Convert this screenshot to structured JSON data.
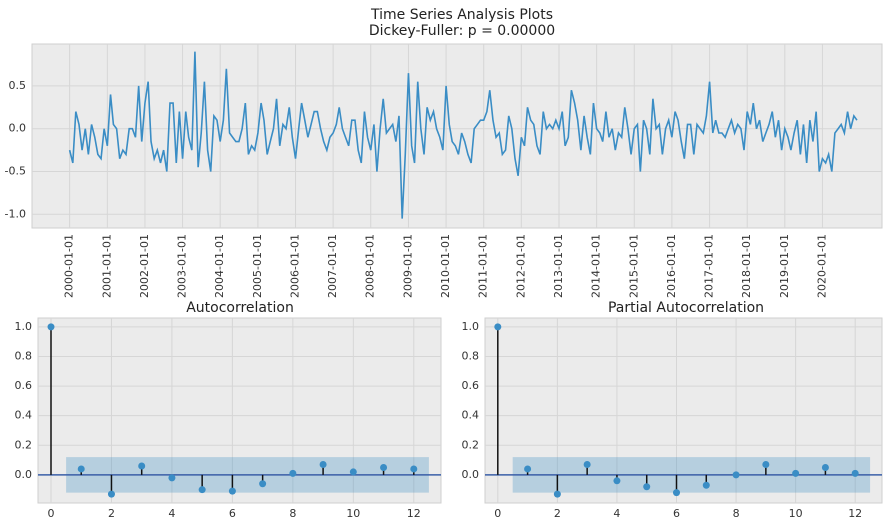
{
  "chart_data": [
    {
      "type": "line",
      "title": "Time Series Analysis Plots",
      "subtitle": "Dickey-Fuller: p = 0.00000",
      "color": "#3a8dc5",
      "grid": true,
      "x": [
        "2000-01-01",
        "2000-02-01",
        "2000-03-01",
        "2000-04-01",
        "2000-05-01",
        "2000-06-01",
        "2000-07-01",
        "2000-08-01",
        "2000-09-01",
        "2000-10-01",
        "2000-11-01",
        "2000-12-01",
        "2001-01-01",
        "2001-02-01",
        "2001-03-01",
        "2001-04-01",
        "2001-05-01",
        "2001-06-01",
        "2001-07-01",
        "2001-08-01",
        "2001-09-01",
        "2001-10-01",
        "2001-11-01",
        "2001-12-01",
        "2002-01-01",
        "2002-02-01",
        "2002-03-01",
        "2002-04-01",
        "2002-05-01",
        "2002-06-01",
        "2002-07-01",
        "2002-08-01",
        "2002-09-01",
        "2002-10-01",
        "2002-11-01",
        "2002-12-01",
        "2003-01-01",
        "2003-02-01",
        "2003-03-01",
        "2003-04-01",
        "2003-05-01",
        "2003-06-01",
        "2003-07-01",
        "2003-08-01",
        "2003-09-01",
        "2003-10-01",
        "2003-11-01",
        "2003-12-01",
        "2004-01-01",
        "2004-02-01",
        "2004-03-01",
        "2004-04-01",
        "2004-05-01",
        "2004-06-01",
        "2004-07-01",
        "2004-08-01",
        "2004-09-01",
        "2004-10-01",
        "2004-11-01",
        "2004-12-01",
        "2005-01-01",
        "2005-02-01",
        "2005-03-01",
        "2005-04-01",
        "2005-05-01",
        "2005-06-01",
        "2005-07-01",
        "2005-08-01",
        "2005-09-01",
        "2005-10-01",
        "2005-11-01",
        "2005-12-01",
        "2006-01-01",
        "2006-02-01",
        "2006-03-01",
        "2006-04-01",
        "2006-05-01",
        "2006-06-01",
        "2006-07-01",
        "2006-08-01",
        "2006-09-01",
        "2006-10-01",
        "2006-11-01",
        "2006-12-01",
        "2007-01-01",
        "2007-02-01",
        "2007-03-01",
        "2007-04-01",
        "2007-05-01",
        "2007-06-01",
        "2007-07-01",
        "2007-08-01",
        "2007-09-01",
        "2007-10-01",
        "2007-11-01",
        "2007-12-01",
        "2008-01-01",
        "2008-02-01",
        "2008-03-01",
        "2008-04-01",
        "2008-05-01",
        "2008-06-01",
        "2008-07-01",
        "2008-08-01",
        "2008-09-01",
        "2008-10-01",
        "2008-11-01",
        "2008-12-01",
        "2009-01-01",
        "2009-02-01",
        "2009-03-01",
        "2009-04-01",
        "2009-05-01",
        "2009-06-01",
        "2009-07-01",
        "2009-08-01",
        "2009-09-01",
        "2009-10-01",
        "2009-11-01",
        "2009-12-01",
        "2010-01-01",
        "2010-02-01",
        "2010-03-01",
        "2010-04-01",
        "2010-05-01",
        "2010-06-01",
        "2010-07-01",
        "2010-08-01",
        "2010-09-01",
        "2010-10-01",
        "2010-11-01",
        "2010-12-01",
        "2011-01-01",
        "2011-02-01",
        "2011-03-01",
        "2011-04-01",
        "2011-05-01",
        "2011-06-01",
        "2011-07-01",
        "2011-08-01",
        "2011-09-01",
        "2011-10-01",
        "2011-11-01",
        "2011-12-01",
        "2012-01-01",
        "2012-02-01",
        "2012-03-01",
        "2012-04-01",
        "2012-05-01",
        "2012-06-01",
        "2012-07-01",
        "2012-08-01",
        "2012-09-01",
        "2012-10-01",
        "2012-11-01",
        "2012-12-01",
        "2013-01-01",
        "2013-02-01",
        "2013-03-01",
        "2013-04-01",
        "2013-05-01",
        "2013-06-01",
        "2013-07-01",
        "2013-08-01",
        "2013-09-01",
        "2013-10-01",
        "2013-11-01",
        "2013-12-01",
        "2014-01-01",
        "2014-02-01",
        "2014-03-01",
        "2014-04-01",
        "2014-05-01",
        "2014-06-01",
        "2014-07-01",
        "2014-08-01",
        "2014-09-01",
        "2014-10-01",
        "2014-11-01",
        "2014-12-01",
        "2015-01-01",
        "2015-02-01",
        "2015-03-01",
        "2015-04-01",
        "2015-05-01",
        "2015-06-01",
        "2015-07-01",
        "2015-08-01",
        "2015-09-01",
        "2015-10-01",
        "2015-11-01",
        "2015-12-01",
        "2016-01-01",
        "2016-02-01",
        "2016-03-01",
        "2016-04-01",
        "2016-05-01",
        "2016-06-01",
        "2016-07-01",
        "2016-08-01",
        "2016-09-01",
        "2016-10-01",
        "2016-11-01",
        "2016-12-01",
        "2017-01-01",
        "2017-02-01",
        "2017-03-01",
        "2017-04-01",
        "2017-05-01",
        "2017-06-01",
        "2017-07-01",
        "2017-08-01",
        "2017-09-01",
        "2017-10-01",
        "2017-11-01",
        "2017-12-01",
        "2018-01-01",
        "2018-02-01",
        "2018-03-01",
        "2018-04-01",
        "2018-05-01",
        "2018-06-01",
        "2018-07-01",
        "2018-08-01",
        "2018-09-01",
        "2018-10-01",
        "2018-11-01",
        "2018-12-01",
        "2019-01-01",
        "2019-02-01",
        "2019-03-01",
        "2019-04-01",
        "2019-05-01",
        "2019-06-01",
        "2019-07-01",
        "2019-08-01",
        "2019-09-01",
        "2019-10-01",
        "2019-11-01",
        "2019-12-01",
        "2020-01-01",
        "2020-02-01",
        "2020-03-01",
        "2020-04-01",
        "2020-05-01",
        "2020-06-01",
        "2020-07-01",
        "2020-08-01",
        "2020-09-01",
        "2020-10-01",
        "2020-11-01",
        "2020-12-01"
      ],
      "values": [
        -0.25,
        -0.4,
        0.2,
        0.05,
        -0.25,
        0.0,
        -0.3,
        0.05,
        -0.1,
        -0.3,
        -0.35,
        0.0,
        -0.2,
        0.4,
        0.05,
        0.0,
        -0.35,
        -0.25,
        -0.3,
        0.0,
        0.0,
        -0.1,
        0.5,
        -0.15,
        0.3,
        0.55,
        -0.15,
        -0.35,
        -0.25,
        -0.4,
        -0.25,
        -0.5,
        0.3,
        0.3,
        -0.4,
        0.2,
        -0.35,
        0.2,
        -0.1,
        -0.25,
        0.9,
        -0.45,
        -0.05,
        0.55,
        -0.25,
        -0.5,
        0.15,
        0.1,
        -0.15,
        0.1,
        0.7,
        -0.05,
        -0.1,
        -0.15,
        -0.15,
        0.0,
        0.3,
        -0.3,
        -0.2,
        -0.25,
        -0.05,
        0.3,
        0.1,
        -0.3,
        -0.15,
        0.0,
        0.35,
        -0.2,
        0.05,
        0.0,
        0.25,
        -0.1,
        -0.35,
        0.0,
        0.3,
        0.1,
        -0.1,
        0.05,
        0.2,
        0.2,
        0.0,
        -0.15,
        -0.25,
        -0.1,
        -0.05,
        0.05,
        0.25,
        0.0,
        -0.1,
        -0.2,
        0.1,
        0.1,
        -0.25,
        -0.4,
        0.2,
        -0.1,
        -0.25,
        0.05,
        -0.5,
        0.0,
        0.35,
        -0.05,
        0.0,
        0.05,
        -0.15,
        0.15,
        -1.05,
        -0.3,
        0.65,
        -0.2,
        -0.4,
        0.55,
        0.0,
        -0.3,
        0.25,
        0.1,
        0.2,
        0.0,
        -0.1,
        -0.25,
        0.5,
        0.05,
        -0.15,
        -0.2,
        -0.3,
        -0.05,
        -0.15,
        -0.3,
        -0.4,
        0.0,
        0.05,
        0.1,
        0.1,
        0.2,
        0.45,
        0.1,
        -0.1,
        -0.05,
        -0.3,
        -0.25,
        0.15,
        0.0,
        -0.35,
        -0.55,
        -0.1,
        -0.2,
        0.25,
        0.1,
        0.05,
        -0.2,
        -0.3,
        0.2,
        0.0,
        0.05,
        0.0,
        0.1,
        0.0,
        0.2,
        -0.2,
        -0.1,
        0.45,
        0.3,
        0.1,
        -0.25,
        0.15,
        -0.1,
        -0.3,
        0.3,
        0.0,
        -0.05,
        -0.15,
        0.2,
        -0.1,
        0.0,
        -0.25,
        -0.05,
        -0.1,
        0.25,
        0.0,
        -0.3,
        0.0,
        0.05,
        -0.5,
        0.1,
        0.0,
        -0.3,
        0.35,
        0.0,
        0.05,
        -0.3,
        0.0,
        0.1,
        -0.1,
        0.2,
        0.1,
        -0.15,
        -0.35,
        0.05,
        0.05,
        -0.3,
        0.05,
        0.0,
        -0.05,
        0.15,
        0.55,
        -0.05,
        0.1,
        -0.05,
        -0.05,
        -0.1,
        0.0,
        0.1,
        -0.05,
        0.05,
        0.0,
        -0.25,
        0.2,
        0.05,
        0.3,
        0.0,
        0.1,
        -0.15,
        -0.05,
        0.05,
        0.2,
        -0.1,
        0.1,
        -0.25,
        0.0,
        -0.1,
        -0.25,
        -0.05,
        0.1,
        -0.3,
        0.05,
        -0.4,
        0.1,
        -0.15,
        0.2,
        -0.5,
        -0.35,
        -0.4,
        -0.3,
        -0.5,
        -0.05,
        0.0,
        0.05,
        -0.05,
        0.2,
        0.0,
        0.15,
        0.1
      ],
      "xlim": [
        "1999-01-01",
        "2021-08-01"
      ],
      "xticks": [
        "2000-01-01",
        "2001-01-01",
        "2002-01-01",
        "2003-01-01",
        "2004-01-01",
        "2005-01-01",
        "2006-01-01",
        "2007-01-01",
        "2008-01-01",
        "2009-01-01",
        "2010-01-01",
        "2011-01-01",
        "2012-01-01",
        "2013-01-01",
        "2014-01-01",
        "2015-01-01",
        "2016-01-01",
        "2017-01-01",
        "2018-01-01",
        "2019-01-01",
        "2020-01-01"
      ],
      "ylim": [
        -1.16,
        0.99
      ],
      "yticks": [
        0.5,
        {
          "value": 0.0,
          "label": "0.0"
        },
        -0.5,
        {
          "value": -1.0,
          "label": "-1.0"
        }
      ]
    },
    {
      "type": "stem",
      "title": "Autocorrelation",
      "color": "#3a8dc5",
      "grid": true,
      "x": [
        0,
        1,
        2,
        3,
        4,
        5,
        6,
        7,
        8,
        9,
        10,
        11,
        12
      ],
      "values": [
        1.0,
        0.04,
        -0.13,
        0.06,
        -0.02,
        -0.1,
        -0.11,
        -0.06,
        0.01,
        0.07,
        0.02,
        0.05,
        0.04
      ],
      "confidence_band": [
        -0.12,
        0.12
      ],
      "xlim": [
        -0.43,
        12.9
      ],
      "xticks": [
        0,
        2,
        4,
        6,
        8,
        10,
        12
      ],
      "ylim": [
        -0.19,
        1.06
      ],
      "yticks": [
        {
          "value": 0.0,
          "label": "0.0"
        },
        0.2,
        0.4,
        0.6,
        0.8,
        {
          "value": 1.0,
          "label": "1.0"
        }
      ]
    },
    {
      "type": "stem",
      "title": "Partial Autocorrelation",
      "color": "#3a8dc5",
      "grid": true,
      "x": [
        0,
        1,
        2,
        3,
        4,
        5,
        6,
        7,
        8,
        9,
        10,
        11,
        12
      ],
      "values": [
        1.0,
        0.04,
        -0.13,
        0.07,
        -0.04,
        -0.08,
        -0.12,
        -0.07,
        0.0,
        0.07,
        0.01,
        0.05,
        0.01
      ],
      "confidence_band": [
        -0.12,
        0.12
      ],
      "xlim": [
        -0.43,
        12.9
      ],
      "xticks": [
        0,
        2,
        4,
        6,
        8,
        10,
        12
      ],
      "ylim": [
        -0.19,
        1.06
      ],
      "yticks": [
        {
          "value": 0.0,
          "label": "0.0"
        },
        0.2,
        0.4,
        0.6,
        0.8,
        {
          "value": 1.0,
          "label": "1.0"
        }
      ]
    }
  ]
}
